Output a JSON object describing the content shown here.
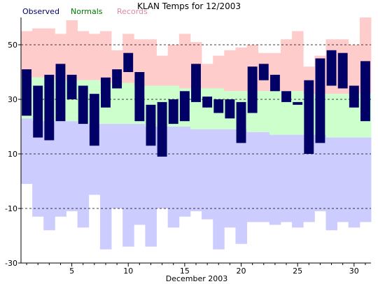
{
  "chart_data": {
    "type": "bar",
    "title": "KLAN Temps for 12/2003",
    "xlabel": "December 2003",
    "ylabel": "",
    "ylim": [
      -30,
      60
    ],
    "xlim": [
      0.5,
      31.5
    ],
    "yticks": [
      -30,
      -10,
      10,
      30,
      50
    ],
    "xticks": [
      5,
      10,
      15,
      20,
      25,
      30
    ],
    "days": [
      1,
      2,
      3,
      4,
      5,
      6,
      7,
      8,
      9,
      10,
      11,
      12,
      13,
      14,
      15,
      16,
      17,
      18,
      19,
      20,
      21,
      22,
      23,
      24,
      25,
      26,
      27,
      28,
      29,
      30,
      31
    ],
    "legend": [
      {
        "label": "Observed",
        "color": "#000066"
      },
      {
        "label": "Normals",
        "color": "#007700"
      },
      {
        "label": "Records",
        "color": "#dd88aa"
      }
    ],
    "colors": {
      "records": "#ffcccc",
      "normals": "#ccffcc",
      "record_low": "#ccccff",
      "observed": "#000066",
      "grid": "#000000"
    },
    "grid": true,
    "series": [
      {
        "name": "Records",
        "high": [
          55,
          56,
          56,
          54,
          59,
          55,
          54,
          55,
          48,
          54,
          52,
          52,
          46,
          50,
          54,
          51,
          43,
          46,
          48,
          49,
          50,
          47,
          47,
          52,
          55,
          42,
          46,
          52,
          52,
          50,
          60
        ]
      },
      {
        "name": "Normals",
        "high": [
          38,
          38,
          38,
          37,
          37,
          37,
          37,
          36,
          36,
          36,
          35,
          35,
          35,
          35,
          34,
          34,
          34,
          34,
          33,
          33,
          33,
          33,
          33,
          33,
          33,
          32,
          32,
          32,
          32,
          32,
          32
        ],
        "low": [
          23,
          22,
          22,
          22,
          22,
          21,
          21,
          21,
          21,
          21,
          21,
          20,
          20,
          20,
          20,
          19,
          19,
          19,
          19,
          19,
          18,
          18,
          17,
          17,
          17,
          17,
          17,
          16,
          16,
          16,
          16
        ]
      },
      {
        "name": "Records",
        "low": [
          -1,
          -13,
          -18,
          -13,
          -11,
          -17,
          -5,
          -25,
          -10,
          -24,
          -16,
          -24,
          -10,
          -17,
          -13,
          -11,
          -14,
          -25,
          -17,
          -23,
          -15,
          -15,
          -16,
          -15,
          -17,
          -15,
          -11,
          -18,
          -15,
          -17,
          -15
        ]
      },
      {
        "name": "Observed",
        "high": [
          41,
          35,
          39,
          43,
          39,
          35,
          32,
          38,
          41,
          47,
          40,
          28,
          29,
          30,
          33,
          43,
          31,
          30,
          30,
          29,
          42,
          43,
          39,
          33,
          29,
          37,
          45,
          48,
          47,
          35,
          44
        ],
        "low": [
          24,
          16,
          15,
          22,
          30,
          21,
          13,
          27,
          34,
          40,
          22,
          13,
          9,
          21,
          22,
          29,
          27,
          25,
          23,
          14,
          25,
          37,
          33,
          29,
          28,
          10,
          14,
          35,
          34,
          27,
          22
        ]
      }
    ]
  }
}
